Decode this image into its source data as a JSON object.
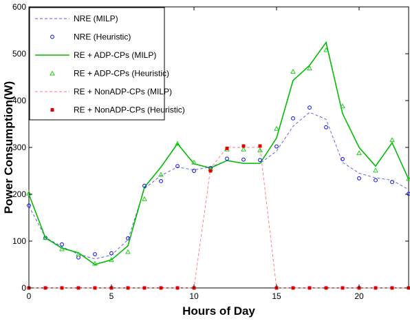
{
  "chart_data": {
    "type": "line",
    "title": "",
    "xlabel": "Hours of Day",
    "ylabel": "Power Consumption(W)",
    "xlim": [
      0,
      23
    ],
    "ylim": [
      0,
      600
    ],
    "xticks": [
      0,
      5,
      10,
      15,
      20
    ],
    "yticks": [
      0,
      100,
      200,
      300,
      400,
      500,
      600
    ],
    "grid": false,
    "legend_position": "top-left",
    "x": [
      0,
      1,
      2,
      3,
      4,
      5,
      6,
      7,
      8,
      9,
      10,
      11,
      12,
      13,
      14,
      15,
      16,
      17,
      18,
      19,
      20,
      21,
      22,
      23
    ],
    "series": [
      {
        "name": "NRE (MILP)",
        "style": "dashed-line",
        "color": "#5555dd",
        "values": [
          175,
          108,
          88,
          72,
          62,
          70,
          103,
          212,
          240,
          258,
          252,
          258,
          272,
          266,
          266,
          292,
          345,
          375,
          360,
          268,
          245,
          235,
          230,
          210
        ]
      },
      {
        "name": "NRE (Heuristic)",
        "style": "circle-markers",
        "color": "#1a1aee",
        "values": [
          176,
          107,
          93,
          65,
          72,
          74,
          106,
          218,
          228,
          260,
          250,
          256,
          276,
          274,
          273,
          302,
          362,
          385,
          343,
          275,
          234,
          230,
          226,
          201
        ]
      },
      {
        "name": "RE + ADP-CPs (MILP)",
        "style": "solid-line",
        "color": "#00bb00",
        "values": [
          200,
          107,
          85,
          75,
          50,
          60,
          90,
          215,
          258,
          308,
          265,
          256,
          272,
          266,
          266,
          320,
          443,
          475,
          524,
          372,
          300,
          260,
          310,
          232
        ]
      },
      {
        "name": "RE + ADP-CPs (Heuristic)",
        "style": "triangle-markers",
        "color": "#22cc22",
        "values": [
          202,
          107,
          83,
          72,
          52,
          60,
          77,
          190,
          242,
          308,
          268,
          254,
          296,
          296,
          294,
          340,
          462,
          469,
          508,
          388,
          288,
          251,
          316,
          233
        ]
      },
      {
        "name": "RE + NonADP-CPs (MILP)",
        "style": "dashed-line",
        "color": "#ff7777",
        "values": [
          0,
          0,
          0,
          0,
          0,
          0,
          0,
          0,
          0,
          0,
          0,
          255,
          300,
          300,
          300,
          0,
          0,
          0,
          0,
          0,
          0,
          0,
          0,
          0
        ]
      },
      {
        "name": "RE + NonADP-CPs (Heuristic)",
        "style": "square-markers",
        "color": "#dd0000",
        "values": [
          0,
          0,
          0,
          0,
          0,
          0,
          0,
          0,
          0,
          0,
          0,
          250,
          298,
          303,
          303,
          0,
          0,
          0,
          0,
          0,
          0,
          0,
          0,
          0
        ]
      }
    ]
  }
}
